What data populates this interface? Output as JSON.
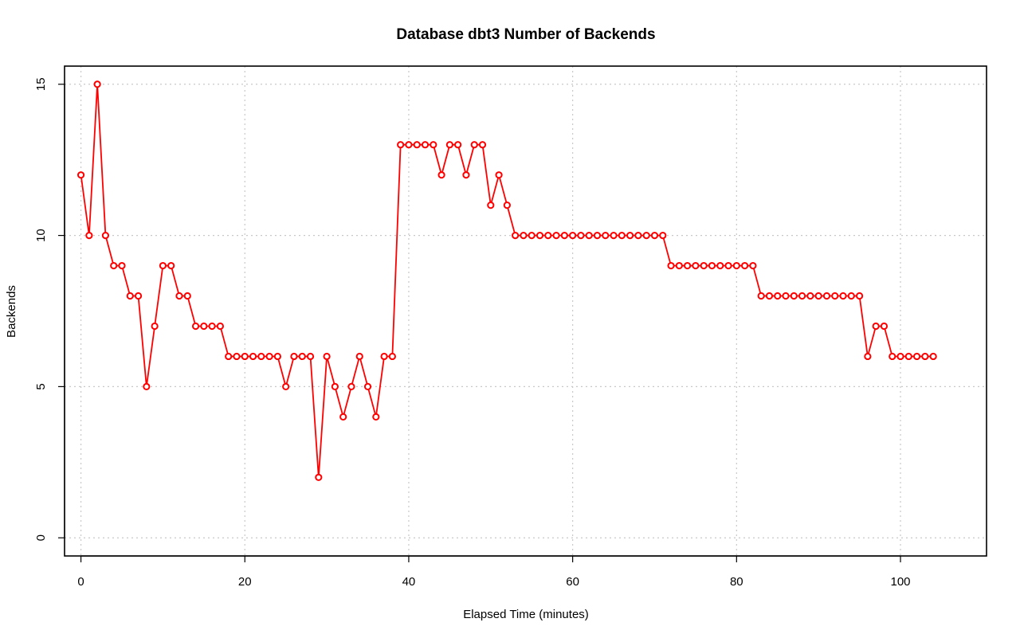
{
  "chart_data": {
    "type": "line",
    "title": "Database dbt3 Number of Backends",
    "xlabel": "Elapsed Time (minutes)",
    "ylabel": "Backends",
    "xlim": [
      -2,
      110.5
    ],
    "ylim": [
      -0.6,
      15.6
    ],
    "xticks": [
      0,
      20,
      40,
      60,
      80,
      100
    ],
    "yticks": [
      0,
      5,
      10,
      15
    ],
    "grid": true,
    "series": [
      {
        "color": "#ff0000",
        "marker": "open-circle",
        "x": [
          0,
          1,
          2,
          3,
          4,
          5,
          6,
          7,
          8,
          9,
          10,
          11,
          12,
          13,
          14,
          15,
          16,
          17,
          18,
          19,
          20,
          21,
          22,
          23,
          24,
          25,
          26,
          27,
          28,
          29,
          30,
          31,
          32,
          33,
          34,
          35,
          36,
          37,
          38,
          39,
          40,
          41,
          42,
          43,
          44,
          45,
          46,
          47,
          48,
          49,
          50,
          51,
          52,
          53,
          54,
          55,
          56,
          57,
          58,
          59,
          60,
          61,
          62,
          63,
          64,
          65,
          66,
          67,
          68,
          69,
          70,
          71,
          72,
          73,
          74,
          75,
          76,
          77,
          78,
          79,
          80,
          81,
          82,
          83,
          84,
          85,
          86,
          87,
          88,
          89,
          90,
          91,
          92,
          93,
          94,
          95,
          96,
          97,
          98,
          99,
          100,
          101,
          102,
          103,
          104
        ],
        "y": [
          12,
          10,
          15,
          10,
          9,
          9,
          8,
          8,
          5,
          7,
          9,
          9,
          8,
          8,
          7,
          7,
          7,
          7,
          6,
          6,
          6,
          6,
          6,
          6,
          6,
          5,
          6,
          6,
          6,
          2,
          6,
          5,
          4,
          5,
          6,
          5,
          4,
          6,
          6,
          13,
          13,
          13,
          13,
          13,
          12,
          13,
          13,
          12,
          13,
          13,
          11,
          12,
          11,
          10,
          10,
          10,
          10,
          10,
          10,
          10,
          10,
          10,
          10,
          10,
          10,
          10,
          10,
          10,
          10,
          10,
          10,
          10,
          9,
          9,
          9,
          9,
          9,
          9,
          9,
          9,
          9,
          9,
          9,
          8,
          8,
          8,
          8,
          8,
          8,
          8,
          8,
          8,
          8,
          8,
          8,
          8,
          6,
          7,
          7,
          6,
          6,
          6,
          6,
          6,
          6
        ]
      }
    ]
  }
}
